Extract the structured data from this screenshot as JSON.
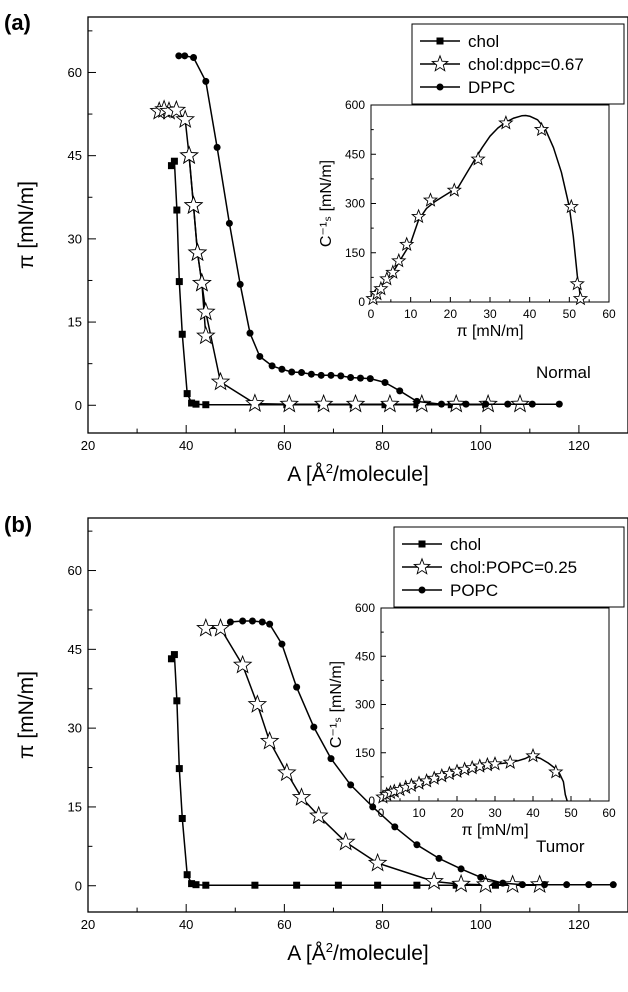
{
  "chart_data": [
    {
      "panel_label": "(a)",
      "type": "line",
      "xlabel": "A [Å²/molecule]",
      "ylabel": "π [mN/m]",
      "xlim": [
        20,
        130
      ],
      "ylim": [
        -5,
        70
      ],
      "xticks": [
        20,
        40,
        60,
        80,
        100,
        120
      ],
      "yticks": [
        0,
        15,
        30,
        45,
        60
      ],
      "annotation": "Normal",
      "legend_position": "top-right",
      "series": [
        {
          "name": "chol",
          "marker": "square",
          "x": [
            37,
            37.6,
            38.1,
            38.6,
            39.2,
            40.2,
            41.1,
            42,
            44,
            54,
            60.5,
            67.5,
            74,
            80.5,
            87,
            94,
            101
          ],
          "y": [
            43.2,
            44,
            35.2,
            22.3,
            12.8,
            2.1,
            0.4,
            0.2,
            0.1,
            0.1,
            0.1,
            0.1,
            0.1,
            0.1,
            0.1,
            0.1,
            0.1
          ]
        },
        {
          "name": "chol:dppc=0.67",
          "marker": "star",
          "x": [
            34.5,
            35.5,
            36.5,
            38,
            39.8,
            40.6,
            41.5,
            42.3,
            43.2,
            44,
            47,
            54,
            61,
            68,
            74.5,
            81.5,
            88,
            95,
            101.5,
            108
          ],
          "y": [
            53,
            53.3,
            53,
            53.2,
            51.5,
            45,
            36,
            27.5,
            22,
            16.8,
            4.2,
            0.3,
            0.2,
            0.2,
            0.2,
            0.2,
            0.2,
            0.2,
            0.2,
            0.2
          ],
          "x2": [
            40.6,
            41.5,
            42.3,
            43.2,
            44
          ],
          "y2": [
            45,
            36,
            27.5,
            22,
            12.5
          ]
        },
        {
          "name": "DPPC",
          "marker": "circle",
          "x": [
            38.5,
            39.7,
            41.5,
            44,
            46.3,
            48.8,
            51,
            53,
            55,
            57.5,
            59.5,
            61.5,
            63.5,
            65.5,
            67.5,
            69.5,
            71.5,
            73.5,
            75.5,
            77.5,
            80.5,
            83.5,
            87,
            92,
            97,
            101,
            105.5,
            110.5,
            116
          ],
          "y": [
            63,
            63,
            62.7,
            58.4,
            46.5,
            32.8,
            21.8,
            13,
            8.8,
            7.1,
            6.5,
            6,
            5.9,
            5.6,
            5.4,
            5.4,
            5.3,
            5,
            4.9,
            4.8,
            4.1,
            2.6,
            0.7,
            0.2,
            0.2,
            0.2,
            0.2,
            0.2,
            0.2
          ]
        }
      ]
    },
    {
      "panel_label": "(a) inset",
      "type": "line",
      "xlabel": "π [mN/m]",
      "ylabel": "C⁻¹ₛ [mN/m]",
      "xlim": [
        0,
        60
      ],
      "ylim": [
        0,
        600
      ],
      "xticks": [
        0,
        10,
        20,
        30,
        40,
        50,
        60
      ],
      "yticks": [
        0,
        150,
        300,
        450,
        600
      ],
      "series": [
        {
          "name": "",
          "marker": "star",
          "x": [
            0,
            0.5,
            1,
            2,
            3,
            4,
            5,
            6,
            7,
            8,
            9,
            10,
            12,
            14,
            16,
            18,
            20,
            22,
            24,
            26,
            28,
            30,
            32,
            34,
            36,
            38,
            39,
            40,
            42,
            44,
            46,
            48,
            50,
            51,
            52,
            52.5,
            52.8,
            53
          ],
          "y": [
            0,
            20,
            35,
            45,
            55,
            70,
            80,
            100,
            120,
            140,
            160,
            180,
            250,
            285,
            305,
            320,
            335,
            350,
            390,
            430,
            470,
            505,
            530,
            548,
            560,
            567,
            568,
            566,
            555,
            525,
            470,
            395,
            290,
            200,
            80,
            40,
            15,
            0
          ]
        },
        {
          "name": "",
          "marker": "star-points",
          "x": [
            0.5,
            1.5,
            2.5,
            4,
            5.5,
            7,
            9,
            12,
            15,
            21,
            27,
            34,
            43,
            50.5,
            52,
            52.8
          ],
          "y": [
            10,
            25,
            40,
            70,
            90,
            125,
            175,
            260,
            310,
            340,
            435,
            545,
            525,
            290,
            55,
            10
          ]
        }
      ]
    },
    {
      "panel_label": "(b)",
      "type": "line",
      "xlabel": "A [Å²/molecule]",
      "ylabel": "π [mN/m]",
      "xlim": [
        20,
        130
      ],
      "ylim": [
        -5,
        70
      ],
      "xticks": [
        20,
        40,
        60,
        80,
        100,
        120
      ],
      "yticks": [
        0,
        15,
        30,
        45,
        60
      ],
      "annotation": "Tumor",
      "legend_position": "top-right",
      "series": [
        {
          "name": "chol",
          "marker": "square",
          "x": [
            37,
            37.6,
            38.1,
            38.6,
            39.2,
            40.2,
            41.1,
            42,
            44,
            54,
            62.5,
            71,
            79,
            87,
            95,
            103,
            112
          ],
          "y": [
            43.2,
            44,
            35.2,
            22.3,
            12.8,
            2.1,
            0.4,
            0.2,
            0.1,
            0.1,
            0.1,
            0.1,
            0.1,
            0.1,
            0.1,
            0.1,
            0.1
          ]
        },
        {
          "name": "chol:POPC=0.25",
          "marker": "star",
          "x": [
            44,
            47,
            51.5,
            54.5,
            57,
            60.5,
            63.5,
            67,
            72.5,
            79,
            90.5,
            96,
            101,
            106.5,
            112
          ],
          "y": [
            49,
            49,
            42,
            34.5,
            27.5,
            21.5,
            16.8,
            13.3,
            8.3,
            4.3,
            0.8,
            0.3,
            0.2,
            0.2,
            0.2
          ]
        },
        {
          "name": "POPC",
          "marker": "circle",
          "x": [
            49,
            51.5,
            53.5,
            55.5,
            57,
            59.5,
            62.5,
            66,
            69.5,
            73.5,
            78,
            82.5,
            87,
            91.5,
            96,
            100,
            104.5,
            108.5,
            113,
            117.5,
            122,
            127
          ],
          "y": [
            50.2,
            50.4,
            50.4,
            50.2,
            49.8,
            46,
            37.8,
            30.2,
            24.2,
            19.2,
            15,
            11.2,
            7.8,
            5.2,
            3.2,
            1.6,
            0.5,
            0.2,
            0.2,
            0.2,
            0.2,
            0.2
          ]
        }
      ]
    },
    {
      "panel_label": "(b) inset",
      "type": "line",
      "xlabel": "π [mN/m]",
      "ylabel": "C⁻¹ₛ [mN/m]",
      "xlim": [
        0,
        60
      ],
      "ylim": [
        0,
        600
      ],
      "xticks": [
        0,
        10,
        20,
        30,
        40,
        50,
        60
      ],
      "yticks": [
        0,
        150,
        300,
        450,
        600
      ],
      "series": [
        {
          "name": "",
          "marker": "star",
          "x": [
            0,
            1,
            2,
            3,
            4,
            6,
            8,
            10,
            12,
            14,
            16,
            18,
            20,
            22,
            24,
            26,
            28,
            30,
            32,
            34,
            36,
            38,
            39,
            40,
            42,
            44,
            46,
            47,
            48,
            48.5,
            49
          ],
          "y": [
            0,
            15,
            25,
            28,
            32,
            40,
            48,
            55,
            62,
            70,
            78,
            85,
            92,
            98,
            103,
            108,
            112,
            115,
            117,
            120,
            125,
            132,
            138,
            140,
            132,
            118,
            100,
            85,
            60,
            20,
            0
          ]
        },
        {
          "name": "",
          "marker": "star-points",
          "x": [
            0.5,
            1.5,
            2.5,
            3.5,
            5,
            6.5,
            8,
            10,
            12,
            14,
            16,
            18,
            20,
            22,
            24,
            26,
            28,
            30,
            34,
            40,
            46
          ],
          "y": [
            12,
            20,
            26,
            30,
            35,
            42,
            48,
            55,
            62,
            70,
            78,
            85,
            92,
            98,
            103,
            108,
            112,
            115,
            120,
            140,
            90
          ]
        }
      ]
    }
  ]
}
